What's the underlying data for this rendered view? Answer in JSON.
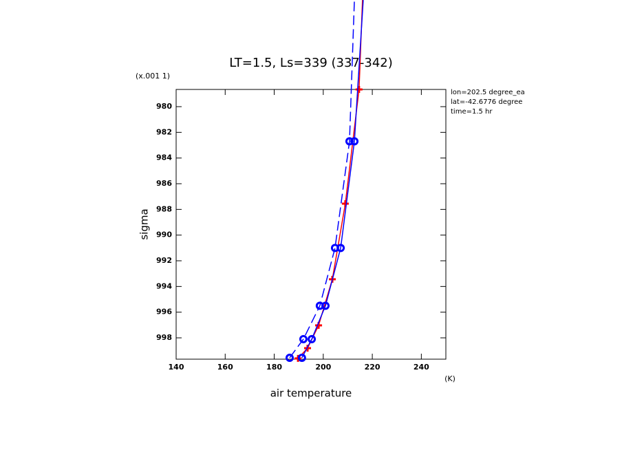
{
  "chart_data": {
    "type": "line",
    "title": "LT=1.5, Ls=339 (337-342)",
    "x_label": "air temperature",
    "x_unit": "(K)",
    "y_label": "sigma",
    "y_scale_note": "(x.001 1)",
    "annotations": [
      "lon=202.5 degree_ea",
      "lat=-42.6776 degree",
      "time=1.5 hr"
    ],
    "xlim": [
      140,
      250
    ],
    "xticks": [
      140,
      160,
      180,
      200,
      220,
      240
    ],
    "ylim": [
      999.66,
      978.66
    ],
    "yticks": [
      980,
      982,
      984,
      986,
      988,
      990,
      992,
      994,
      996,
      998
    ],
    "series": [
      {
        "color": "#ff0000",
        "dash": "solid",
        "marker": "plus",
        "x": [
          189.7,
          193.6,
          198.1,
          203.7,
          209.0,
          214.6,
          216.0
        ],
        "values": [
          999.6,
          998.8,
          997.03,
          993.44,
          987.55,
          978.66,
          971.7
        ]
      },
      {
        "color": "#0000ff",
        "dash": "dashed",
        "marker": "circle",
        "x": [
          186.3,
          191.9,
          198.6,
          204.8,
          210.7,
          212.7
        ],
        "values": [
          999.55,
          998.1,
          995.5,
          991.0,
          982.7,
          971.7
        ]
      },
      {
        "color": "#0000ff",
        "dash": "solid",
        "marker": "circle",
        "x": [
          191.3,
          195.3,
          200.9,
          207.1,
          212.7,
          216.3
        ],
        "values": [
          999.55,
          998.1,
          995.5,
          991.0,
          982.7,
          971.7
        ]
      }
    ]
  }
}
